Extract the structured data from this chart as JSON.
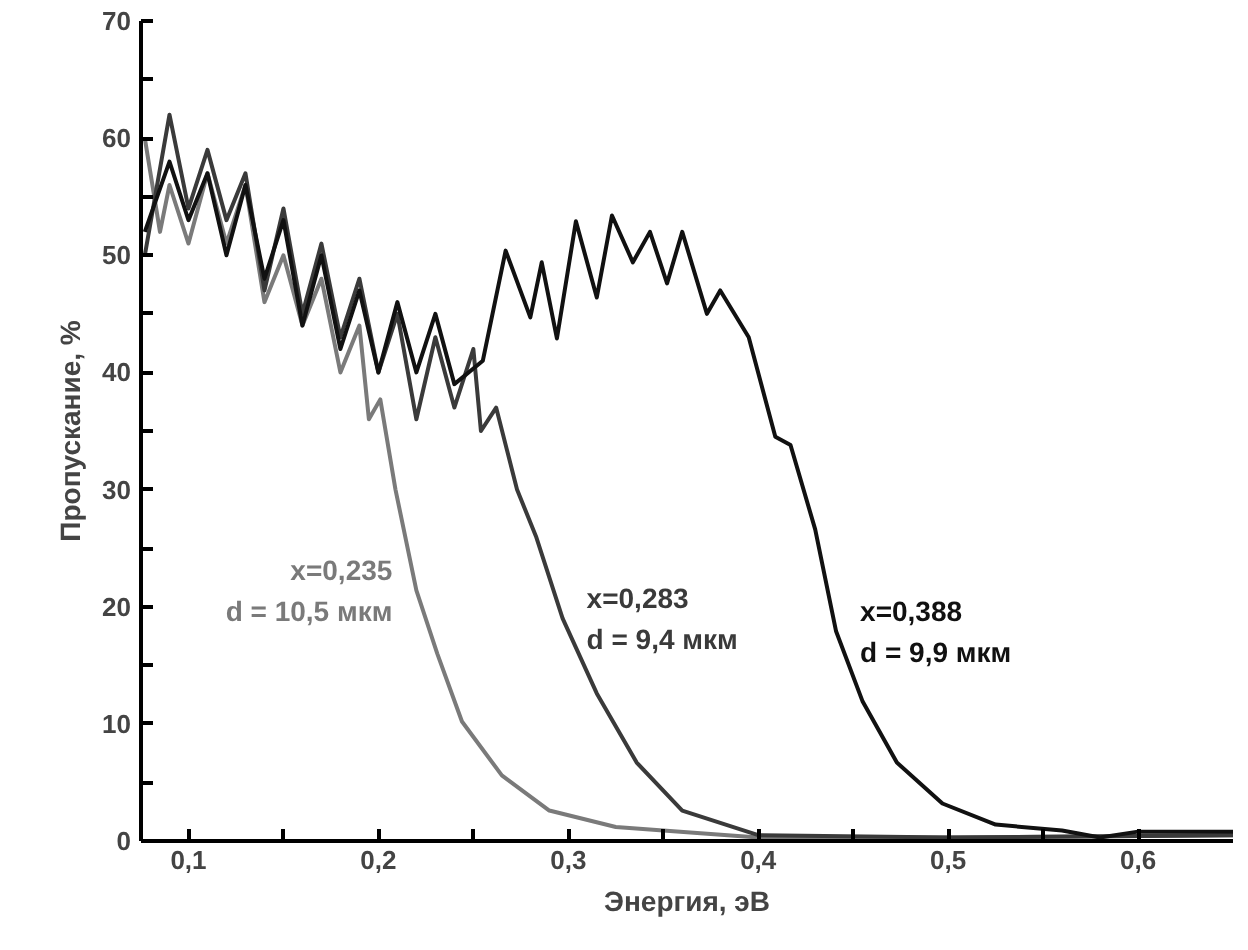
{
  "chart_data": {
    "type": "line",
    "xlabel": "Энергия, эВ",
    "ylabel": "Пропускание, %",
    "xlim": [
      0.075,
      0.65
    ],
    "ylim": [
      0,
      70
    ],
    "xticks": [
      {
        "value": 0.1,
        "label": "0,1"
      },
      {
        "value": 0.15,
        "label": null
      },
      {
        "value": 0.2,
        "label": "0,2"
      },
      {
        "value": 0.25,
        "label": null
      },
      {
        "value": 0.3,
        "label": "0,3"
      },
      {
        "value": 0.35,
        "label": null
      },
      {
        "value": 0.4,
        "label": "0,4"
      },
      {
        "value": 0.45,
        "label": null
      },
      {
        "value": 0.5,
        "label": "0,5"
      },
      {
        "value": 0.55,
        "label": null
      },
      {
        "value": 0.6,
        "label": "0,6"
      }
    ],
    "yticks": [
      0,
      {
        "value": 5,
        "label": null
      },
      10,
      {
        "value": 15,
        "label": null
      },
      20,
      {
        "value": 25,
        "label": null
      },
      30,
      {
        "value": 35,
        "label": null
      },
      40,
      {
        "value": 45,
        "label": null
      },
      50,
      {
        "value": 55,
        "label": null
      },
      60,
      {
        "value": 65,
        "label": null
      },
      70
    ],
    "grid": false,
    "legend": false,
    "marker": "none",
    "line_style": "solid",
    "series": [
      {
        "name": "x=0,235\nd = 10,5 мкм",
        "color": "#7a7a7a",
        "x": [
          0.077,
          0.085,
          0.09,
          0.1,
          0.11,
          0.12,
          0.13,
          0.14,
          0.15,
          0.16,
          0.17,
          0.18,
          0.19,
          0.195,
          0.201,
          0.209,
          0.22,
          0.231,
          0.244,
          0.265,
          0.29,
          0.325,
          0.4,
          0.5,
          0.65
        ],
        "values": [
          60,
          52,
          56,
          51,
          57,
          51,
          56,
          46,
          50,
          44,
          48,
          40,
          44,
          36,
          37.7,
          30,
          21.4,
          16,
          10.2,
          5.6,
          2.6,
          1.2,
          0.3,
          0.3,
          0.5
        ]
      },
      {
        "name": "x=0,283\nd = 9,4 мкм",
        "color": "#3a3a3a",
        "x": [
          0.077,
          0.09,
          0.1,
          0.11,
          0.12,
          0.13,
          0.14,
          0.15,
          0.16,
          0.17,
          0.18,
          0.19,
          0.2,
          0.21,
          0.22,
          0.23,
          0.24,
          0.25,
          0.254,
          0.262,
          0.273,
          0.283,
          0.297,
          0.315,
          0.336,
          0.36,
          0.4,
          0.5,
          0.65
        ],
        "values": [
          50,
          62,
          54,
          59,
          53,
          57,
          47,
          54,
          45,
          51,
          43,
          48,
          40,
          45,
          36,
          43,
          37,
          42,
          35,
          37,
          30,
          26,
          19,
          12.6,
          6.7,
          2.6,
          0.5,
          0.3,
          0.5
        ]
      },
      {
        "name": "x=0,388\nd = 9,9 мкм",
        "color": "#111111",
        "x": [
          0.077,
          0.09,
          0.1,
          0.11,
          0.12,
          0.13,
          0.14,
          0.15,
          0.16,
          0.17,
          0.18,
          0.19,
          0.2,
          0.21,
          0.22,
          0.23,
          0.24,
          0.255,
          0.267,
          0.28,
          0.286,
          0.294,
          0.304,
          0.315,
          0.323,
          0.334,
          0.343,
          0.352,
          0.36,
          0.373,
          0.38,
          0.395,
          0.409,
          0.417,
          0.43,
          0.441,
          0.455,
          0.473,
          0.497,
          0.525,
          0.56,
          0.58,
          0.6,
          0.65
        ],
        "values": [
          52,
          58,
          53,
          57,
          50,
          56,
          48,
          53,
          44,
          50,
          42,
          47,
          40,
          46,
          40,
          45,
          39,
          41,
          50.4,
          44.7,
          49.4,
          42.9,
          52.9,
          46.4,
          53.4,
          49.4,
          52,
          47.6,
          52,
          45,
          47,
          43,
          34.5,
          33.8,
          26.6,
          17.9,
          11.9,
          6.7,
          3.2,
          1.4,
          0.9,
          0.3,
          0.8,
          0.8
        ]
      }
    ]
  }
}
